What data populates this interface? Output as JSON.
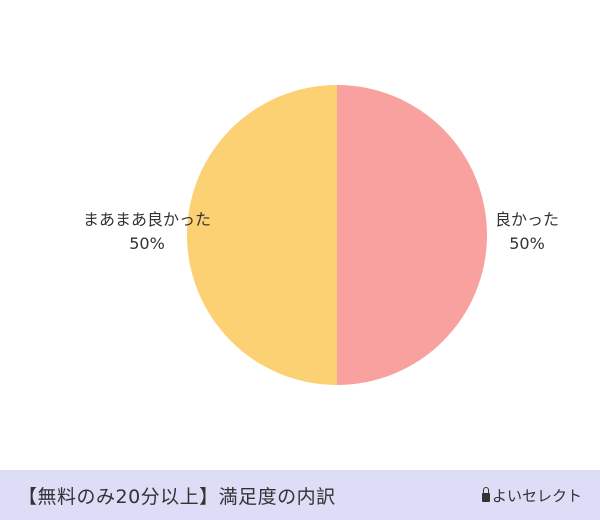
{
  "chart_data": {
    "type": "pie",
    "slices": [
      {
        "label": "良かった",
        "value": 50,
        "percent_label": "50%",
        "color": "#f9a19e"
      },
      {
        "label": "まあまあ良かった",
        "value": 50,
        "percent_label": "50%",
        "color": "#fcd174"
      }
    ],
    "start": "12 o'clock",
    "direction": "clockwise"
  },
  "footer": {
    "title": "【無料のみ20分以上】満足度の内訳",
    "brand": "よいセレクト"
  },
  "colors": {
    "footer_background": "#ddddf7",
    "label_text": "#333333"
  }
}
